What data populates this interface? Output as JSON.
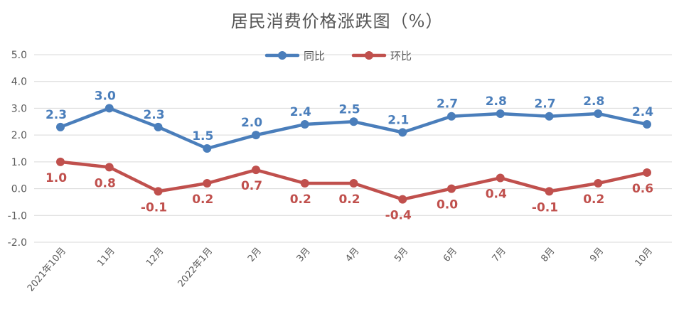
{
  "chart_data": {
    "type": "line",
    "title": "居民消费价格涨跌图（%）",
    "categories": [
      "2021年10月",
      "11月",
      "12月",
      "2022年1月",
      "2月",
      "3月",
      "4月",
      "5月",
      "6月",
      "7月",
      "8月",
      "9月",
      "10月"
    ],
    "series": [
      {
        "name": "同比",
        "color": "#4a7ebb",
        "values": [
          2.3,
          3.0,
          2.3,
          1.5,
          2.0,
          2.4,
          2.5,
          2.1,
          2.7,
          2.8,
          2.7,
          2.8,
          2.4
        ]
      },
      {
        "name": "环比",
        "color": "#c0504d",
        "values": [
          1.0,
          0.8,
          -0.1,
          0.2,
          0.7,
          0.2,
          0.2,
          -0.4,
          0.0,
          0.4,
          -0.1,
          0.2,
          0.6
        ]
      }
    ],
    "yticks": [
      "5.0",
      "4.0",
      "3.0",
      "2.0",
      "1.0",
      "0.0",
      "-1.0",
      "-2.0"
    ],
    "ylim": [
      -2.0,
      5.0
    ],
    "legend_position": "top-center",
    "grid": true
  }
}
